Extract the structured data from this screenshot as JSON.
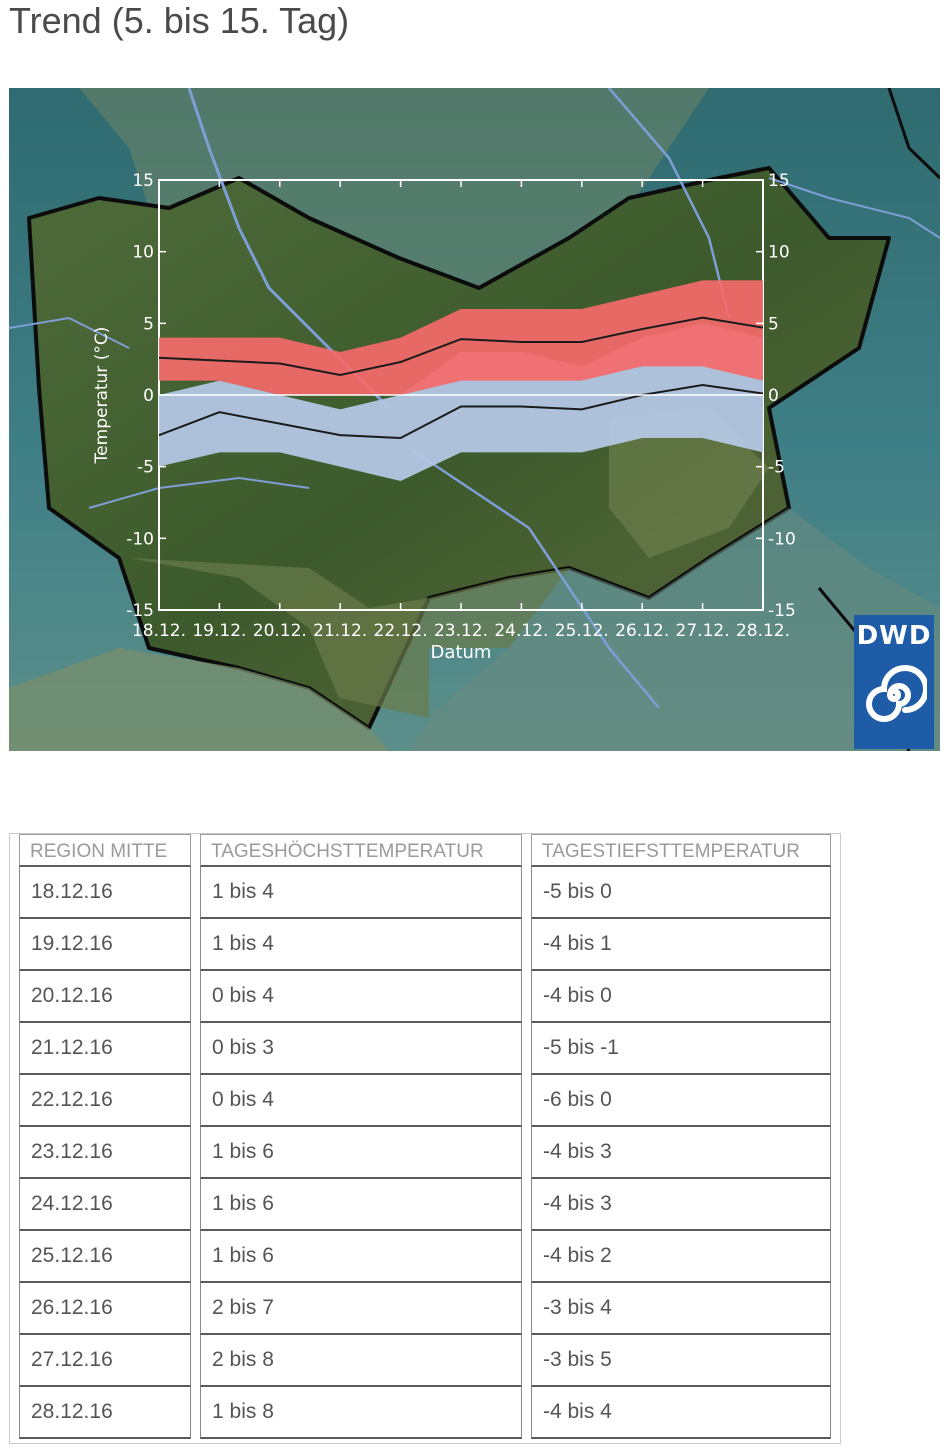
{
  "page": {
    "title": "Trend (5. bis 15. Tag)"
  },
  "logo": {
    "text": "DWD"
  },
  "chart_data": {
    "type": "area",
    "xlabel": "Datum",
    "ylabel": "Temperatur (°C)",
    "ylim": [
      -15,
      15
    ],
    "y_ticks": [
      "15",
      "10",
      "5",
      "0",
      "-5",
      "-10",
      "-15"
    ],
    "categories": [
      "18.12.",
      "19.12.",
      "20.12.",
      "21.12.",
      "22.12.",
      "23.12.",
      "24.12.",
      "25.12.",
      "26.12.",
      "27.12.",
      "28.12."
    ],
    "series": [
      {
        "name": "Tageshöchsttemperatur",
        "color": "#f46a6a",
        "low": [
          1,
          1,
          0,
          0,
          0,
          1,
          1,
          1,
          2,
          2,
          1
        ],
        "high": [
          4,
          4,
          4,
          3,
          4,
          6,
          6,
          6,
          7,
          8,
          8
        ],
        "median": [
          2.6,
          2.4,
          2.2,
          1.4,
          2.3,
          3.9,
          3.7,
          3.7,
          4.6,
          5.4,
          4.7
        ]
      },
      {
        "name": "Tagestiefsttemperatur",
        "color": "#b3c7e4",
        "low": [
          -5,
          -4,
          -4,
          -5,
          -6,
          -4,
          -4,
          -4,
          -3,
          -3,
          -4
        ],
        "high": [
          0,
          1,
          0,
          -1,
          0,
          3,
          3,
          2,
          4,
          5,
          4
        ],
        "median": [
          -2.8,
          -1.2,
          -2.0,
          -2.8,
          -3.0,
          -0.8,
          -0.8,
          -1.0,
          0.0,
          0.7,
          0.1
        ]
      }
    ],
    "colors": {
      "max_band": "#f46a6a",
      "min_band": "#b3c7e4",
      "median_line": "#1b1b1b",
      "frame": "#ffffff"
    }
  },
  "table": {
    "headers": [
      "REGION MITTE",
      "TAGESHÖCHSTTEMPERATUR",
      "TAGESTIEFSTTEMPERATUR"
    ],
    "rows": [
      [
        "18.12.16",
        "1 bis 4",
        "-5 bis 0"
      ],
      [
        "19.12.16",
        "1 bis 4",
        "-4 bis 1"
      ],
      [
        "20.12.16",
        "0 bis 4",
        "-4 bis 0"
      ],
      [
        "21.12.16",
        "0 bis 3",
        "-5 bis -1"
      ],
      [
        "22.12.16",
        "0 bis 4",
        "-6 bis 0"
      ],
      [
        "23.12.16",
        "1 bis 6",
        "-4 bis 3"
      ],
      [
        "24.12.16",
        "1 bis 6",
        "-4 bis 3"
      ],
      [
        "25.12.16",
        "1 bis 6",
        "-4 bis 2"
      ],
      [
        "26.12.16",
        "2 bis 7",
        "-3 bis 4"
      ],
      [
        "27.12.16",
        "2 bis 8",
        "-3 bis 5"
      ],
      [
        "28.12.16",
        "1 bis 8",
        "-4 bis 4"
      ]
    ]
  }
}
